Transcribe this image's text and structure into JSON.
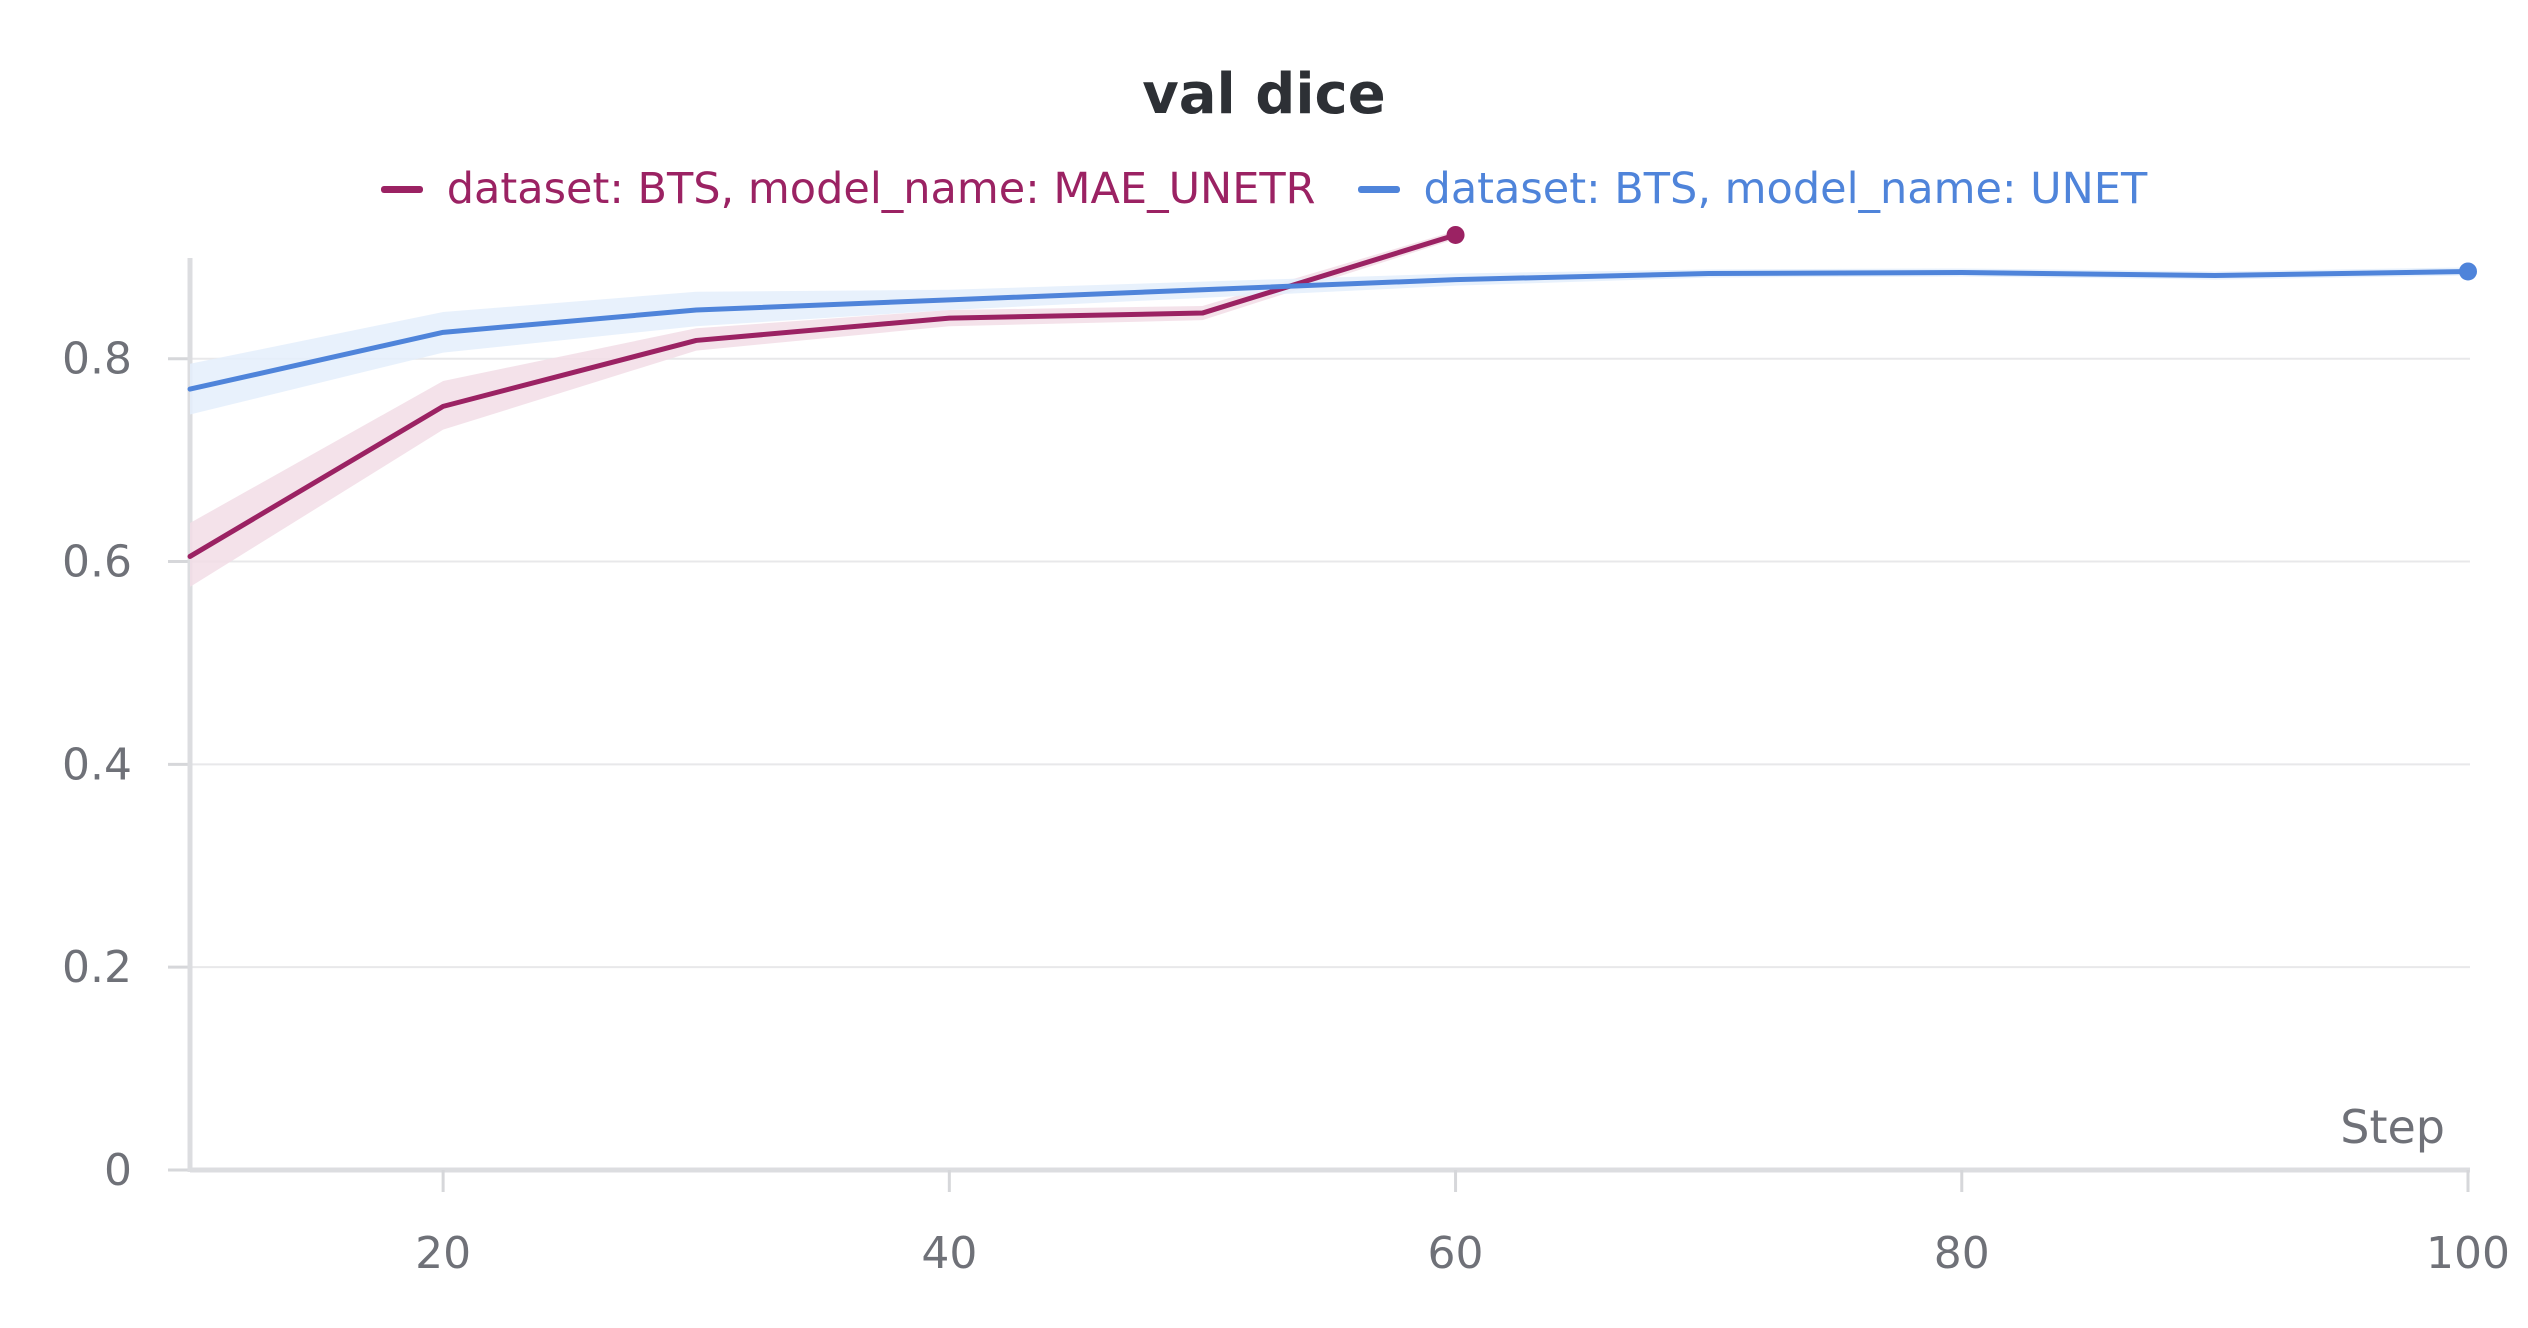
{
  "chart_data": {
    "type": "line",
    "title": "val dice",
    "xlabel": "Step",
    "ylabel": "",
    "xlim": [
      10,
      100
    ],
    "ylim": [
      0,
      0.92
    ],
    "xticks": [
      20,
      40,
      60,
      80,
      100
    ],
    "xtick_labels": [
      "20",
      "40",
      "60",
      "80",
      "100"
    ],
    "yticks": [
      0,
      0.2,
      0.4,
      0.6,
      0.8
    ],
    "ytick_labels": [
      "0",
      "0.2",
      "0.4",
      "0.6",
      "0.8"
    ],
    "grid": true,
    "legend_position": "top-center",
    "series": [
      {
        "name": "dataset: BTS, model_name: MAE_UNETR",
        "color": "#9b2263",
        "band_color": "#f2dde6",
        "x": [
          10,
          20,
          30,
          40,
          50,
          60
        ],
        "y": [
          0.605,
          0.753,
          0.818,
          0.84,
          0.845,
          0.922
        ],
        "band_low": [
          0.575,
          0.73,
          0.808,
          0.832,
          0.838,
          0.918
        ],
        "band_high": [
          0.638,
          0.778,
          0.83,
          0.848,
          0.852,
          0.926
        ]
      },
      {
        "name": "dataset: BTS, model_name: UNET",
        "color": "#4f84da",
        "band_color": "#e4eefb",
        "x": [
          10,
          20,
          30,
          40,
          50,
          60,
          70,
          80,
          90,
          100
        ],
        "y": [
          0.77,
          0.826,
          0.848,
          0.858,
          0.868,
          0.878,
          0.884,
          0.885,
          0.882,
          0.886
        ],
        "band_low": [
          0.745,
          0.806,
          0.832,
          0.848,
          0.86,
          0.872,
          0.88,
          0.881,
          0.878,
          0.882
        ],
        "band_high": [
          0.795,
          0.846,
          0.866,
          0.868,
          0.876,
          0.884,
          0.888,
          0.889,
          0.886,
          0.89
        ]
      }
    ]
  }
}
